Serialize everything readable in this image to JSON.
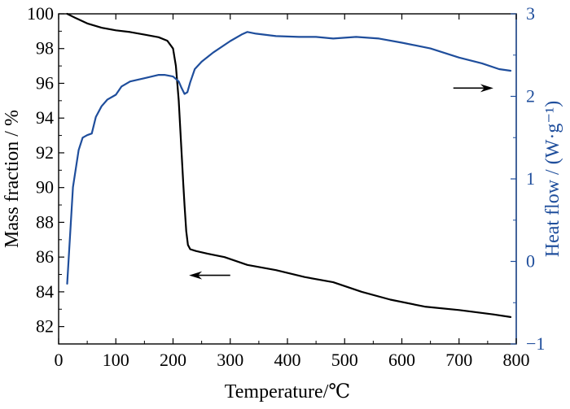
{
  "chart_data": {
    "type": "line",
    "xlabel": "Temperature/℃",
    "ylabel_left": "Mass fraction / %",
    "ylabel_right": "Heat flow / (W·g⁻¹)",
    "xlim": [
      0,
      800
    ],
    "ylim_left": [
      81,
      100
    ],
    "ylim_right": [
      -1,
      3
    ],
    "x_ticks": [
      "0",
      "100",
      "200",
      "300",
      "400",
      "500",
      "600",
      "700",
      "800"
    ],
    "y_left_ticks": [
      "82",
      "84",
      "86",
      "88",
      "90",
      "92",
      "94",
      "96",
      "98",
      "100"
    ],
    "y_right_ticks": [
      "−1",
      "0",
      "1",
      "2",
      "3"
    ],
    "colors": {
      "mass": "#000000",
      "heat": "#1f4e9c"
    },
    "series": [
      {
        "axis": "left",
        "x": [
          15,
          30,
          50,
          75,
          100,
          125,
          150,
          175,
          190,
          200,
          205,
          210,
          215,
          218,
          220,
          223,
          226,
          230,
          240,
          260,
          290,
          330,
          380,
          430,
          480,
          530,
          580,
          640,
          700,
          760,
          790
        ],
        "y": [
          100,
          99.75,
          99.45,
          99.2,
          99.05,
          98.95,
          98.8,
          98.65,
          98.45,
          98.0,
          97.0,
          95.0,
          92.0,
          90.2,
          89.0,
          87.5,
          86.7,
          86.45,
          86.35,
          86.2,
          86.0,
          85.55,
          85.25,
          84.85,
          84.55,
          84.0,
          83.55,
          83.15,
          82.95,
          82.7,
          82.55
        ]
      },
      {
        "axis": "right",
        "x": [
          15,
          25,
          35,
          42,
          50,
          58,
          65,
          75,
          85,
          100,
          110,
          125,
          150,
          175,
          185,
          200,
          210,
          215,
          220,
          225,
          230,
          238,
          250,
          270,
          300,
          320,
          330,
          345,
          380,
          420,
          450,
          480,
          520,
          560,
          600,
          650,
          700,
          740,
          770,
          790
        ],
        "y": [
          -0.27,
          0.9,
          1.35,
          1.5,
          1.53,
          1.55,
          1.75,
          1.88,
          1.96,
          2.02,
          2.12,
          2.18,
          2.22,
          2.26,
          2.26,
          2.24,
          2.18,
          2.1,
          2.03,
          2.05,
          2.17,
          2.33,
          2.42,
          2.53,
          2.67,
          2.75,
          2.78,
          2.76,
          2.73,
          2.72,
          2.72,
          2.7,
          2.72,
          2.7,
          2.65,
          2.58,
          2.47,
          2.4,
          2.33,
          2.31
        ]
      }
    ],
    "annotations": [
      {
        "label": "left-arrow",
        "axis": "left",
        "x_from": 300,
        "x_to": 228,
        "y": 84.95
      },
      {
        "label": "right-arrow",
        "axis": "right",
        "x_from": 690,
        "x_to": 760,
        "y": 2.1
      }
    ]
  }
}
